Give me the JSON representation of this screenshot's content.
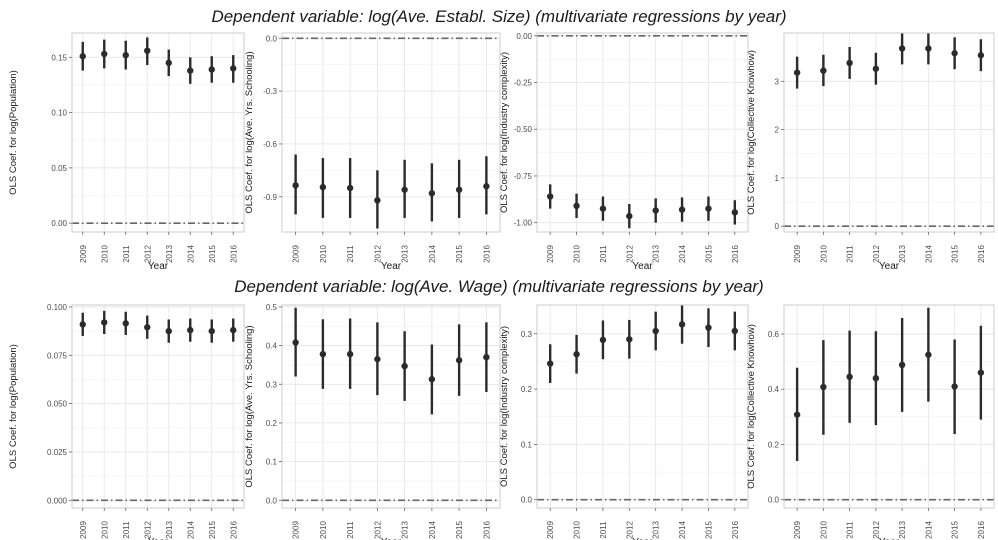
{
  "rows": [
    {
      "title": "Dependent variable: log(Ave. Establ. Size) (multivariate regressions by year)"
    },
    {
      "title": "Dependent variable: log(Ave. Wage) (multivariate regressions by year)"
    }
  ],
  "colors": {
    "point": "#2b2b2b",
    "errorbar": "#2b2b2b",
    "zero_line": "#666666",
    "grid": "#e6e6e6",
    "frame": "#cccccc"
  },
  "chart_data": [
    {
      "type": "scatter",
      "row": 0,
      "col": 0,
      "xlabel": "Year",
      "ylabel": "OLS Coef. for log(Population)",
      "x": [
        "2009",
        "2010",
        "2011",
        "2012",
        "2013",
        "2014",
        "2015",
        "2016"
      ],
      "y": [
        0.151,
        0.153,
        0.152,
        0.156,
        0.145,
        0.138,
        0.139,
        0.14
      ],
      "lower": [
        0.138,
        0.14,
        0.139,
        0.143,
        0.133,
        0.126,
        0.127,
        0.127
      ],
      "upper": [
        0.164,
        0.166,
        0.165,
        0.168,
        0.157,
        0.15,
        0.151,
        0.152
      ],
      "ylim": [
        -0.008,
        0.172
      ],
      "yticks": [
        0.0,
        0.05,
        0.1,
        0.15
      ],
      "ytick_labels": [
        "0.00",
        "0.05",
        "0.10",
        "0.15"
      ],
      "reference_line": 0,
      "grid": true
    },
    {
      "type": "scatter",
      "row": 0,
      "col": 1,
      "xlabel": "Year",
      "ylabel": "OLS Coef. for log(Ave. Yrs. Schooling)",
      "x": [
        "2009",
        "2010",
        "2011",
        "2012",
        "2013",
        "2014",
        "2015",
        "2016"
      ],
      "y": [
        -0.835,
        -0.845,
        -0.85,
        -0.92,
        -0.86,
        -0.88,
        -0.86,
        -0.84
      ],
      "lower": [
        -1.0,
        -1.02,
        -1.02,
        -1.08,
        -1.02,
        -1.04,
        -1.02,
        -1.0
      ],
      "upper": [
        -0.66,
        -0.68,
        -0.68,
        -0.75,
        -0.69,
        -0.71,
        -0.69,
        -0.67
      ],
      "ylim": [
        -1.1,
        0.03
      ],
      "yticks": [
        0.0,
        -0.3,
        -0.6,
        -0.9
      ],
      "ytick_labels": [
        "0.0",
        "-0.3",
        "-0.6",
        "-0.9"
      ],
      "reference_line": 0,
      "grid": true
    },
    {
      "type": "scatter",
      "row": 0,
      "col": 2,
      "xlabel": "Year",
      "ylabel": "OLS Coef. for log(Industry complexity)",
      "x": [
        "2009",
        "2010",
        "2011",
        "2012",
        "2013",
        "2014",
        "2015",
        "2016"
      ],
      "y": [
        -0.86,
        -0.91,
        -0.925,
        -0.965,
        -0.935,
        -0.93,
        -0.925,
        -0.945
      ],
      "lower": [
        -0.925,
        -0.975,
        -0.99,
        -1.03,
        -1.0,
        -0.995,
        -0.99,
        -1.01
      ],
      "upper": [
        -0.795,
        -0.845,
        -0.86,
        -0.9,
        -0.87,
        -0.865,
        -0.86,
        -0.88
      ],
      "ylim": [
        -1.05,
        0.015
      ],
      "yticks": [
        0.0,
        -0.25,
        -0.5,
        -0.75,
        -1.0
      ],
      "ytick_labels": [
        "0.00",
        "-0.25",
        "-0.50",
        "-0.75",
        "-1.00"
      ],
      "reference_line": 0,
      "grid": true
    },
    {
      "type": "scatter",
      "row": 0,
      "col": 3,
      "xlabel": "Year",
      "ylabel": "OLS Coef. for log(Collective Knowhow)",
      "x": [
        "2009",
        "2010",
        "2011",
        "2012",
        "2013",
        "2014",
        "2015",
        "2016"
      ],
      "y": [
        3.18,
        3.22,
        3.38,
        3.26,
        3.68,
        3.68,
        3.58,
        3.54
      ],
      "lower": [
        2.85,
        2.9,
        3.05,
        2.93,
        3.35,
        3.35,
        3.25,
        3.21
      ],
      "upper": [
        3.51,
        3.55,
        3.71,
        3.59,
        4.01,
        4.01,
        3.91,
        3.87
      ],
      "ylim": [
        -0.12,
        4.0
      ],
      "yticks": [
        0,
        1,
        2,
        3
      ],
      "ytick_labels": [
        "0",
        "1",
        "2",
        "3"
      ],
      "reference_line": 0,
      "grid": true
    },
    {
      "type": "scatter",
      "row": 1,
      "col": 0,
      "xlabel": "Year",
      "ylabel": "OLS Coef. for log(Population)",
      "x": [
        "2009",
        "2010",
        "2011",
        "2012",
        "2013",
        "2014",
        "2015",
        "2016"
      ],
      "y": [
        0.091,
        0.092,
        0.0915,
        0.0895,
        0.0875,
        0.088,
        0.0875,
        0.088
      ],
      "lower": [
        0.085,
        0.086,
        0.0855,
        0.0835,
        0.0815,
        0.082,
        0.0815,
        0.082
      ],
      "upper": [
        0.097,
        0.098,
        0.0975,
        0.0955,
        0.0935,
        0.094,
        0.0935,
        0.094
      ],
      "ylim": [
        -0.004,
        0.101
      ],
      "yticks": [
        0.0,
        0.025,
        0.05,
        0.075,
        0.1
      ],
      "ytick_labels": [
        "0.000",
        "0.025",
        "0.050",
        "0.075",
        "0.100"
      ],
      "reference_line": 0,
      "grid": true
    },
    {
      "type": "scatter",
      "row": 1,
      "col": 1,
      "xlabel": "Year",
      "ylabel": "OLS Coef. for log(Ave. Yrs. Schooling)",
      "x": [
        "2009",
        "2010",
        "2011",
        "2012",
        "2013",
        "2014",
        "2015",
        "2016"
      ],
      "y": [
        0.408,
        0.378,
        0.378,
        0.365,
        0.347,
        0.313,
        0.362,
        0.37
      ],
      "lower": [
        0.32,
        0.288,
        0.288,
        0.272,
        0.257,
        0.222,
        0.27,
        0.28
      ],
      "upper": [
        0.498,
        0.468,
        0.47,
        0.46,
        0.437,
        0.403,
        0.455,
        0.46
      ],
      "ylim": [
        -0.02,
        0.505
      ],
      "yticks": [
        0.0,
        0.1,
        0.2,
        0.3,
        0.4,
        0.5
      ],
      "ytick_labels": [
        "0.0",
        "0.1",
        "0.2",
        "0.3",
        "0.4",
        "0.5"
      ],
      "reference_line": 0,
      "grid": true
    },
    {
      "type": "scatter",
      "row": 1,
      "col": 2,
      "xlabel": "Year",
      "ylabel": "OLS Coef. for log(Industry complexity)",
      "x": [
        "2009",
        "2010",
        "2011",
        "2012",
        "2013",
        "2014",
        "2015",
        "2016"
      ],
      "y": [
        0.246,
        0.263,
        0.289,
        0.29,
        0.305,
        0.317,
        0.311,
        0.305
      ],
      "lower": [
        0.211,
        0.228,
        0.254,
        0.255,
        0.27,
        0.282,
        0.276,
        0.27
      ],
      "upper": [
        0.281,
        0.298,
        0.324,
        0.325,
        0.34,
        0.352,
        0.346,
        0.34
      ],
      "ylim": [
        -0.015,
        0.352
      ],
      "yticks": [
        0.0,
        0.1,
        0.2,
        0.3
      ],
      "ytick_labels": [
        "0.0",
        "0.1",
        "0.2",
        "0.3"
      ],
      "reference_line": 0,
      "grid": true
    },
    {
      "type": "scatter",
      "row": 1,
      "col": 3,
      "xlabel": "Year",
      "ylabel": "OLS Coef. for log(Collective Knowhow)",
      "x": [
        "2009",
        "2010",
        "2011",
        "2012",
        "2013",
        "2014",
        "2015",
        "2016"
      ],
      "y": [
        0.308,
        0.408,
        0.445,
        0.44,
        0.488,
        0.525,
        0.41,
        0.46
      ],
      "lower": [
        0.14,
        0.235,
        0.278,
        0.27,
        0.318,
        0.355,
        0.238,
        0.29
      ],
      "upper": [
        0.478,
        0.578,
        0.612,
        0.61,
        0.658,
        0.695,
        0.58,
        0.63
      ],
      "ylim": [
        -0.03,
        0.705
      ],
      "yticks": [
        0.0,
        0.2,
        0.4,
        0.6
      ],
      "ytick_labels": [
        "0.0",
        "0.2",
        "0.4",
        "0.6"
      ],
      "reference_line": 0,
      "grid": true
    }
  ]
}
